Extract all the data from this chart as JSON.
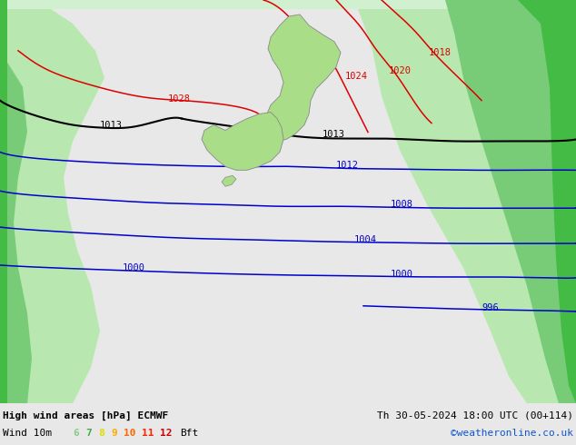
{
  "title_left": "High wind areas [hPa] ECMWF",
  "title_right": "Th 30-05-2024 18:00 UTC (00+114)",
  "subtitle_left": "Wind 10m",
  "subtitle_right": "©weatheronline.co.uk",
  "bft_nums": [
    "6",
    "7",
    "8",
    "9",
    "10",
    "11",
    "12"
  ],
  "bft_colors": [
    "#88cc88",
    "#44aa44",
    "#dddd00",
    "#ffaa00",
    "#ff6600",
    "#ff2200",
    "#cc0000"
  ],
  "bg_color": "#e0e8e0",
  "land_green": "#aadd88",
  "light_green": "#b8e8b0",
  "medium_green": "#78cc78",
  "dark_green": "#44bb44",
  "very_light_green": "#d0f0d0",
  "coast_color": "#888888",
  "pressure_red": "#dd0000",
  "pressure_black": "#000000",
  "pressure_blue": "#0000cc",
  "figsize": [
    6.34,
    4.9
  ],
  "dpi": 100
}
